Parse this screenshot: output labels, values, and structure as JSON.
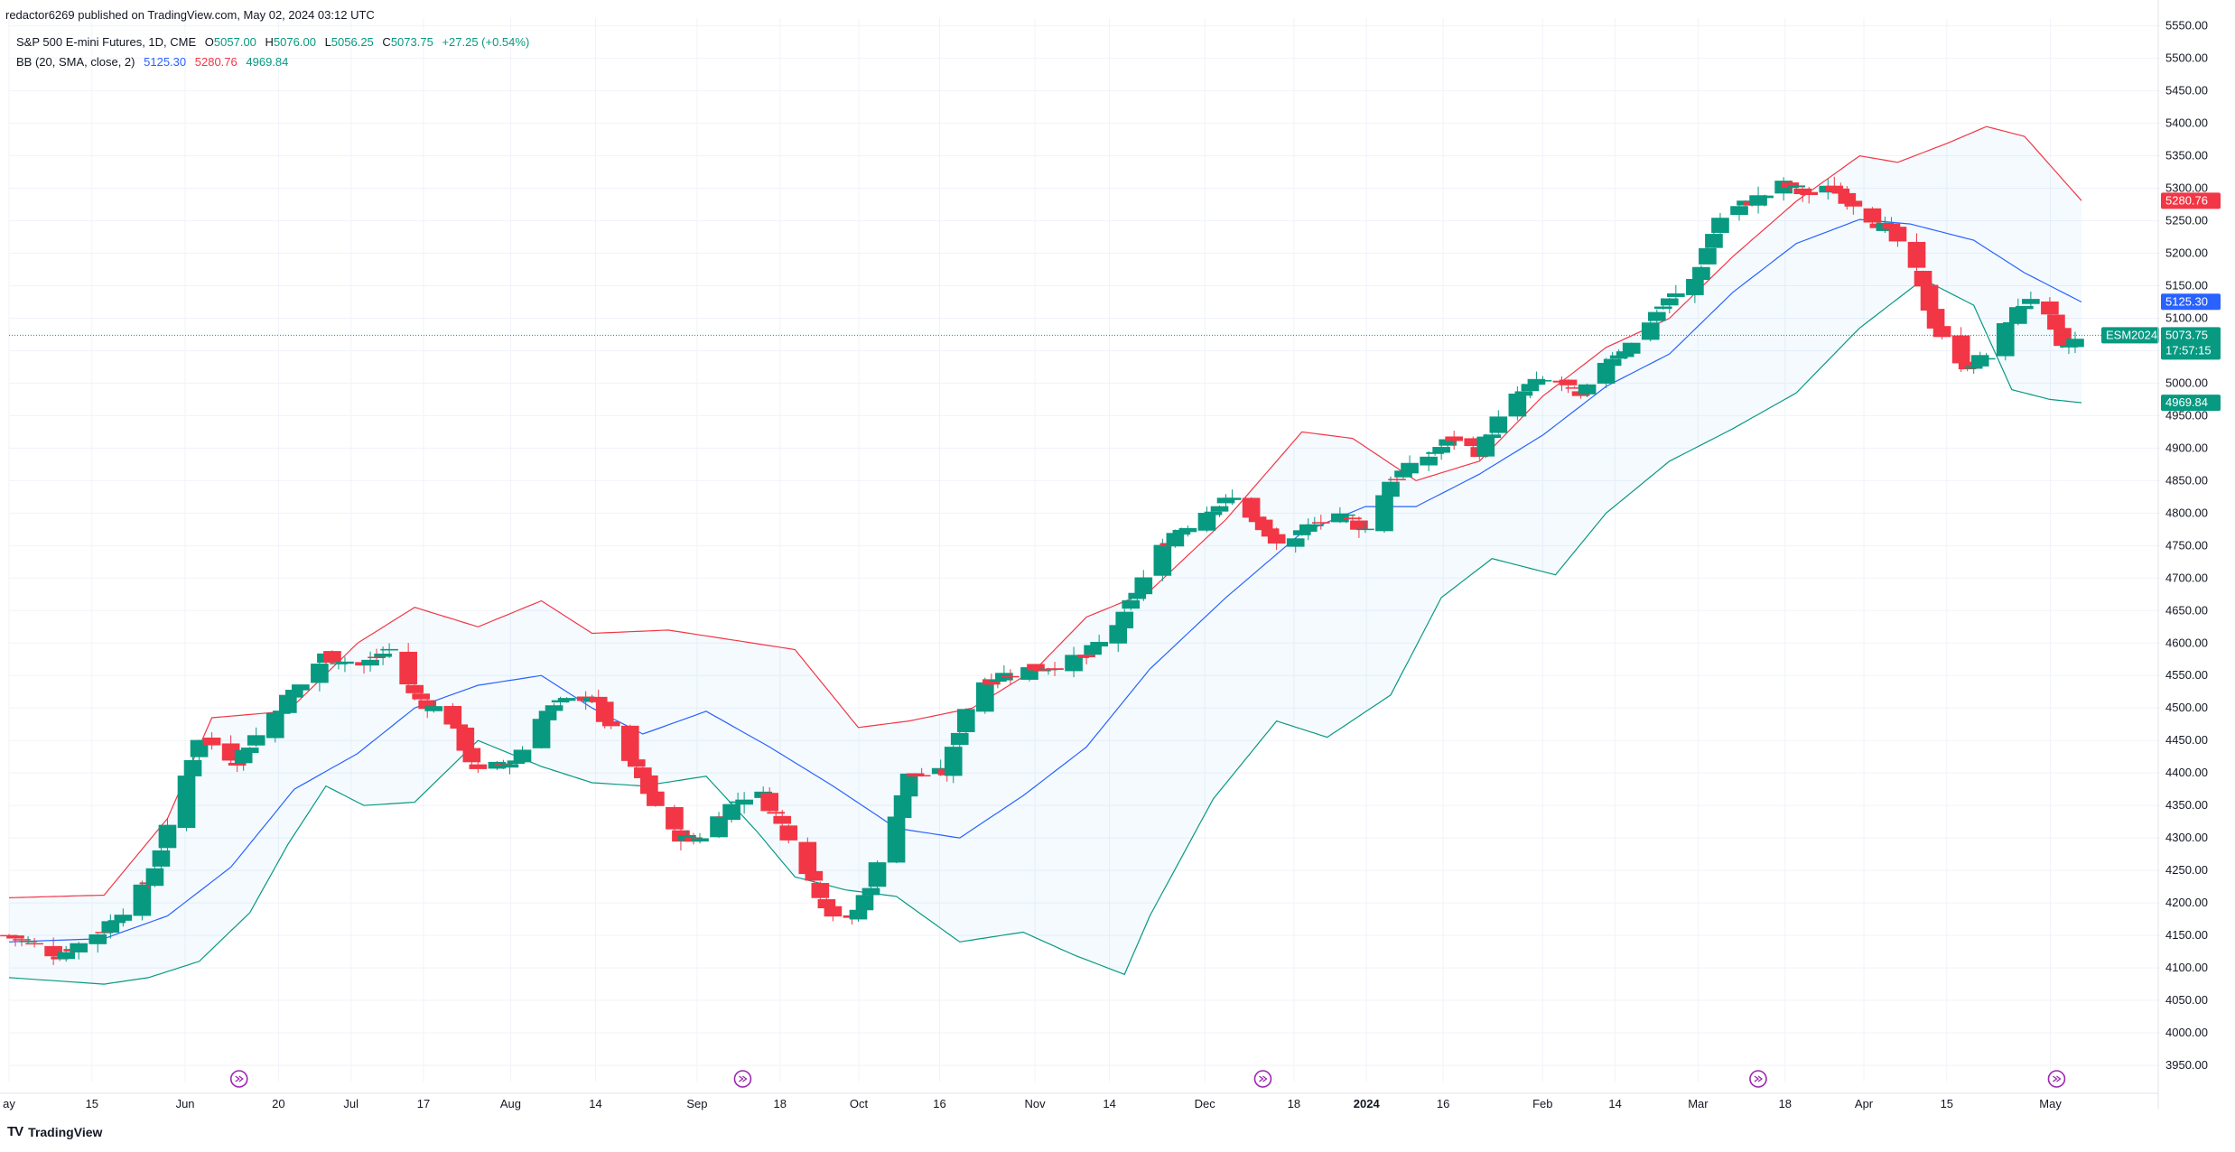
{
  "header": {
    "publisher": "redactor6269 published on TradingView.com, May 02, 2024 03:12 UTC"
  },
  "legend": {
    "symbol": "S&P 500 E-mini Futures, 1D, CME",
    "open_label": "O",
    "open": "5057.00",
    "high_label": "H",
    "high": "5076.00",
    "low_label": "L",
    "low": "5056.25",
    "close_label": "C",
    "close": "5073.75",
    "change": "+27.25 (+0.54%)",
    "bb_label": "BB (20, SMA, close, 2)",
    "bb_basis": "5125.30",
    "bb_upper": "5280.76",
    "bb_lower": "4969.84"
  },
  "badges": {
    "upper": "5280.76",
    "basis": "5125.30",
    "ticker": "ESM2024",
    "price": "5073.75",
    "countdown": "17:57:15",
    "lower": "4969.84"
  },
  "footer": {
    "brand": "TradingView",
    "logo_mark": "TV"
  },
  "colors": {
    "up": "#089981",
    "down": "#f23645",
    "basis": "#2962ff",
    "upper_band": "#f23645",
    "lower_band": "#089981",
    "band_fill": "#2196f3",
    "grid": "#f0f3fa"
  },
  "chart_data": {
    "type": "candlestick",
    "title": "S&P 500 E-mini Futures, 1D, CME",
    "ylim": [
      3925,
      5562
    ],
    "y_ticks": [
      3950,
      4000,
      4050,
      4100,
      4150,
      4200,
      4250,
      4300,
      4350,
      4400,
      4450,
      4500,
      4550,
      4600,
      4650,
      4700,
      4750,
      4800,
      4850,
      4900,
      4950,
      5000,
      5050,
      5100,
      5150,
      5200,
      5250,
      5300,
      5350,
      5400,
      5450,
      5500,
      5550
    ],
    "x_tick_labels": [
      {
        "label": "ay",
        "t": 0,
        "bold": false
      },
      {
        "label": "15",
        "t": 0.04,
        "bold": false
      },
      {
        "label": "Jun",
        "t": 0.085,
        "bold": false
      },
      {
        "label": "20",
        "t": 0.13,
        "bold": false
      },
      {
        "label": "Jul",
        "t": 0.165,
        "bold": false
      },
      {
        "label": "17",
        "t": 0.2,
        "bold": false
      },
      {
        "label": "Aug",
        "t": 0.242,
        "bold": false
      },
      {
        "label": "14",
        "t": 0.283,
        "bold": false
      },
      {
        "label": "Sep",
        "t": 0.332,
        "bold": false
      },
      {
        "label": "18",
        "t": 0.372,
        "bold": false
      },
      {
        "label": "Oct",
        "t": 0.41,
        "bold": false
      },
      {
        "label": "16",
        "t": 0.449,
        "bold": false
      },
      {
        "label": "Nov",
        "t": 0.495,
        "bold": false
      },
      {
        "label": "14",
        "t": 0.531,
        "bold": false
      },
      {
        "label": "Dec",
        "t": 0.577,
        "bold": false
      },
      {
        "label": "18",
        "t": 0.62,
        "bold": false
      },
      {
        "label": "2024",
        "t": 0.655,
        "bold": true
      },
      {
        "label": "16",
        "t": 0.692,
        "bold": false
      },
      {
        "label": "Feb",
        "t": 0.74,
        "bold": false
      },
      {
        "label": "14",
        "t": 0.775,
        "bold": false
      },
      {
        "label": "Mar",
        "t": 0.815,
        "bold": false
      },
      {
        "label": "18",
        "t": 0.857,
        "bold": false
      },
      {
        "label": "Apr",
        "t": 0.895,
        "bold": false
      },
      {
        "label": "15",
        "t": 0.935,
        "bold": false
      },
      {
        "label": "May",
        "t": 0.985,
        "bold": false
      }
    ],
    "event_markers": [
      0.111,
      0.354,
      0.605,
      0.844,
      0.988
    ],
    "series": [
      {
        "name": "Close",
        "anchors": [
          [
            0,
            4150
          ],
          [
            8,
            4120
          ],
          [
            15,
            4160
          ],
          [
            22,
            4230
          ],
          [
            28,
            4395
          ],
          [
            30,
            4455
          ],
          [
            36,
            4420
          ],
          [
            40,
            4470
          ],
          [
            44,
            4515
          ],
          [
            50,
            4580
          ],
          [
            56,
            4565
          ],
          [
            60,
            4590
          ],
          [
            64,
            4520
          ],
          [
            70,
            4480
          ],
          [
            74,
            4400
          ],
          [
            80,
            4420
          ],
          [
            84,
            4490
          ],
          [
            88,
            4510
          ],
          [
            92,
            4520
          ],
          [
            96,
            4445
          ],
          [
            100,
            4390
          ],
          [
            104,
            4310
          ],
          [
            108,
            4295
          ],
          [
            114,
            4350
          ],
          [
            118,
            4380
          ],
          [
            124,
            4290
          ],
          [
            128,
            4215
          ],
          [
            132,
            4150
          ],
          [
            136,
            4230
          ],
          [
            142,
            4395
          ],
          [
            148,
            4400
          ],
          [
            152,
            4535
          ],
          [
            158,
            4555
          ],
          [
            164,
            4565
          ],
          [
            170,
            4578
          ],
          [
            176,
            4640
          ],
          [
            180,
            4720
          ],
          [
            184,
            4770
          ],
          [
            190,
            4810
          ],
          [
            194,
            4825
          ],
          [
            198,
            4770
          ],
          [
            202,
            4740
          ],
          [
            206,
            4790
          ],
          [
            210,
            4800
          ],
          [
            214,
            4775
          ],
          [
            218,
            4850
          ],
          [
            222,
            4875
          ],
          [
            228,
            4915
          ],
          [
            232,
            4895
          ],
          [
            236,
            4960
          ],
          [
            240,
            4995
          ],
          [
            244,
            5010
          ],
          [
            248,
            4975
          ],
          [
            252,
            5035
          ],
          [
            256,
            5060
          ],
          [
            260,
            5110
          ],
          [
            266,
            5160
          ],
          [
            270,
            5255
          ],
          [
            276,
            5285
          ],
          [
            280,
            5305
          ],
          [
            284,
            5290
          ],
          [
            288,
            5300
          ],
          [
            292,
            5270
          ],
          [
            296,
            5240
          ],
          [
            300,
            5195
          ],
          [
            304,
            5090
          ],
          [
            308,
            5025
          ],
          [
            312,
            5040
          ],
          [
            316,
            5100
          ],
          [
            320,
            5145
          ],
          [
            324,
            5050
          ],
          [
            327,
            5074
          ]
        ]
      },
      {
        "name": "BB Upper (20)",
        "anchors": [
          [
            0,
            4208
          ],
          [
            15,
            4212
          ],
          [
            25,
            4330
          ],
          [
            32,
            4485
          ],
          [
            44,
            4495
          ],
          [
            55,
            4600
          ],
          [
            64,
            4655
          ],
          [
            74,
            4625
          ],
          [
            84,
            4665
          ],
          [
            92,
            4615
          ],
          [
            104,
            4620
          ],
          [
            114,
            4605
          ],
          [
            124,
            4590
          ],
          [
            134,
            4470
          ],
          [
            142,
            4480
          ],
          [
            152,
            4500
          ],
          [
            162,
            4560
          ],
          [
            170,
            4640
          ],
          [
            180,
            4680
          ],
          [
            192,
            4790
          ],
          [
            204,
            4925
          ],
          [
            212,
            4915
          ],
          [
            222,
            4850
          ],
          [
            232,
            4880
          ],
          [
            242,
            4980
          ],
          [
            252,
            5055
          ],
          [
            262,
            5100
          ],
          [
            272,
            5195
          ],
          [
            282,
            5280
          ],
          [
            292,
            5350
          ],
          [
            298,
            5340
          ],
          [
            306,
            5370
          ],
          [
            312,
            5395
          ],
          [
            318,
            5380
          ],
          [
            327,
            5281
          ]
        ]
      },
      {
        "name": "BB Basis (20)",
        "anchors": [
          [
            0,
            4140
          ],
          [
            15,
            4145
          ],
          [
            25,
            4180
          ],
          [
            35,
            4255
          ],
          [
            45,
            4375
          ],
          [
            55,
            4430
          ],
          [
            64,
            4500
          ],
          [
            74,
            4535
          ],
          [
            84,
            4550
          ],
          [
            92,
            4500
          ],
          [
            100,
            4460
          ],
          [
            110,
            4495
          ],
          [
            120,
            4440
          ],
          [
            130,
            4380
          ],
          [
            140,
            4315
          ],
          [
            150,
            4300
          ],
          [
            160,
            4365
          ],
          [
            170,
            4440
          ],
          [
            180,
            4560
          ],
          [
            192,
            4670
          ],
          [
            204,
            4770
          ],
          [
            214,
            4810
          ],
          [
            222,
            4810
          ],
          [
            232,
            4860
          ],
          [
            242,
            4920
          ],
          [
            252,
            4995
          ],
          [
            262,
            5045
          ],
          [
            272,
            5140
          ],
          [
            282,
            5215
          ],
          [
            292,
            5252
          ],
          [
            300,
            5245
          ],
          [
            310,
            5220
          ],
          [
            318,
            5170
          ],
          [
            327,
            5125
          ]
        ]
      },
      {
        "name": "BB Lower (20)",
        "anchors": [
          [
            0,
            4085
          ],
          [
            15,
            4075
          ],
          [
            22,
            4085
          ],
          [
            30,
            4110
          ],
          [
            38,
            4185
          ],
          [
            44,
            4290
          ],
          [
            50,
            4380
          ],
          [
            56,
            4350
          ],
          [
            64,
            4355
          ],
          [
            74,
            4450
          ],
          [
            84,
            4410
          ],
          [
            92,
            4385
          ],
          [
            100,
            4380
          ],
          [
            110,
            4395
          ],
          [
            118,
            4310
          ],
          [
            124,
            4240
          ],
          [
            132,
            4220
          ],
          [
            140,
            4210
          ],
          [
            150,
            4140
          ],
          [
            160,
            4155
          ],
          [
            168,
            4120
          ],
          [
            176,
            4090
          ],
          [
            180,
            4180
          ],
          [
            190,
            4360
          ],
          [
            200,
            4480
          ],
          [
            208,
            4455
          ],
          [
            218,
            4520
          ],
          [
            226,
            4670
          ],
          [
            234,
            4730
          ],
          [
            244,
            4705
          ],
          [
            252,
            4800
          ],
          [
            262,
            4880
          ],
          [
            272,
            4930
          ],
          [
            282,
            4985
          ],
          [
            292,
            5085
          ],
          [
            302,
            5160
          ],
          [
            310,
            5120
          ],
          [
            316,
            4990
          ],
          [
            322,
            4975
          ],
          [
            327,
            4970
          ]
        ]
      }
    ],
    "last": {
      "open": 5057.0,
      "high": 5076.0,
      "low": 5056.25,
      "close": 5073.75,
      "change": 27.25,
      "change_pct": 0.54
    }
  }
}
